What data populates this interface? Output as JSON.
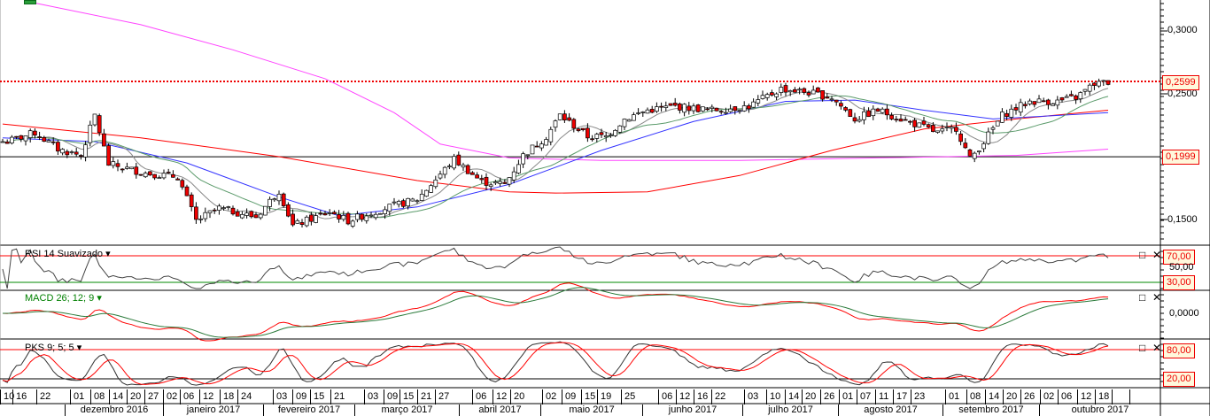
{
  "price_axis": {
    "labels": [
      "0,3000",
      "0,2500",
      "0,1500"
    ],
    "values": [
      0.3,
      0.25,
      0.15
    ]
  },
  "price_tags": [
    {
      "label": "0,2599",
      "value": 0.2599,
      "style": "dotted",
      "color": "#e00000"
    },
    {
      "label": "0,1999",
      "value": 0.1999,
      "style": "solid",
      "color": "#000000"
    }
  ],
  "panels": {
    "rsi": {
      "title": "RSI 14 Suavizado",
      "levels": [
        {
          "label": "70,00",
          "value": 70,
          "color": "#ff0000"
        },
        {
          "label": "30,00",
          "value": 30,
          "color": "#008000"
        }
      ],
      "mid_label": "50,00"
    },
    "macd": {
      "title": "MACD 26; 12; 9",
      "zero_label": "0,0000",
      "title_color": "#008000"
    },
    "pks": {
      "title": "PKS 9; 5; 5",
      "levels": [
        {
          "label": "80,00",
          "value": 80,
          "color": "#ff0000"
        },
        {
          "label": "20,00",
          "value": 20,
          "color": "#000000"
        }
      ]
    }
  },
  "panel_buttons": {
    "maximize": "□",
    "close": "✕"
  },
  "date_axis": {
    "days": [
      "10",
      "16",
      "22",
      "01",
      "08",
      "14",
      "20",
      "27",
      "02",
      "06",
      "12",
      "18",
      "24",
      "03",
      "09",
      "15",
      "21",
      "03",
      "09",
      "15",
      "21",
      "27",
      "06",
      "12",
      "20",
      "02",
      "09",
      "15",
      "19",
      "25",
      "06",
      "12",
      "16",
      "22",
      "03",
      "10",
      "14",
      "20",
      "26",
      "01",
      "07",
      "11",
      "17",
      "23",
      "01",
      "08",
      "14",
      "20",
      "26",
      "02",
      "06",
      "12",
      "18",
      "",
      ""
    ],
    "months": [
      "dezembro 2016",
      "janeiro 2017",
      "fevereiro 2017",
      "março 2017",
      "abril 2017",
      "maio 2017",
      "junho 2017",
      "julho 2017",
      "agosto 2017",
      "setembro 2017",
      "outubro 2017"
    ]
  },
  "chart_data": {
    "type": "candlestick",
    "sessions": 241,
    "close_path": [
      [
        1,
        0.212
      ],
      [
        7,
        0.219
      ],
      [
        12,
        0.206
      ],
      [
        17,
        0.201
      ],
      [
        20,
        0.233
      ],
      [
        23,
        0.194
      ],
      [
        31,
        0.187
      ],
      [
        38,
        0.184
      ],
      [
        42,
        0.149
      ],
      [
        47,
        0.159
      ],
      [
        55,
        0.152
      ],
      [
        60,
        0.173
      ],
      [
        63,
        0.145
      ],
      [
        71,
        0.156
      ],
      [
        75,
        0.149
      ],
      [
        83,
        0.159
      ],
      [
        90,
        0.166
      ],
      [
        98,
        0.198
      ],
      [
        104,
        0.18
      ],
      [
        109,
        0.178
      ],
      [
        113,
        0.201
      ],
      [
        118,
        0.216
      ],
      [
        121,
        0.233
      ],
      [
        127,
        0.216
      ],
      [
        131,
        0.216
      ],
      [
        135,
        0.23
      ],
      [
        140,
        0.237
      ],
      [
        146,
        0.24
      ],
      [
        154,
        0.237
      ],
      [
        162,
        0.24
      ],
      [
        169,
        0.254
      ],
      [
        175,
        0.251
      ],
      [
        180,
        0.247
      ],
      [
        185,
        0.23
      ],
      [
        190,
        0.237
      ],
      [
        198,
        0.226
      ],
      [
        203,
        0.219
      ],
      [
        207,
        0.223
      ],
      [
        210,
        0.198
      ],
      [
        213,
        0.212
      ],
      [
        217,
        0.233
      ],
      [
        223,
        0.244
      ],
      [
        229,
        0.244
      ],
      [
        233,
        0.247
      ],
      [
        237,
        0.258
      ],
      [
        240,
        0.259
      ]
    ],
    "moving_averages": [
      {
        "name": "MM longa (magenta)",
        "color": "#ff44ff",
        "path": [
          [
            6,
            0.323
          ],
          [
            30,
            0.305
          ],
          [
            50,
            0.285
          ],
          [
            70,
            0.262
          ],
          [
            85,
            0.235
          ],
          [
            95,
            0.21
          ],
          [
            110,
            0.199
          ],
          [
            130,
            0.197
          ],
          [
            160,
            0.197
          ],
          [
            190,
            0.199
          ],
          [
            220,
            0.201
          ],
          [
            240,
            0.206
          ]
        ]
      },
      {
        "name": "MM média (vermelha)",
        "color": "#ff0000",
        "path": [
          [
            0,
            0.226
          ],
          [
            30,
            0.215
          ],
          [
            60,
            0.2
          ],
          [
            90,
            0.181
          ],
          [
            110,
            0.172
          ],
          [
            120,
            0.171
          ],
          [
            140,
            0.172
          ],
          [
            160,
            0.185
          ],
          [
            180,
            0.205
          ],
          [
            200,
            0.222
          ],
          [
            220,
            0.23
          ],
          [
            240,
            0.237
          ]
        ]
      },
      {
        "name": "MM curta (azul)",
        "color": "#3333ff",
        "path": [
          [
            0,
            0.215
          ],
          [
            20,
            0.212
          ],
          [
            40,
            0.195
          ],
          [
            60,
            0.168
          ],
          [
            73,
            0.153
          ],
          [
            90,
            0.16
          ],
          [
            110,
            0.178
          ],
          [
            130,
            0.205
          ],
          [
            150,
            0.228
          ],
          [
            170,
            0.244
          ],
          [
            185,
            0.245
          ],
          [
            200,
            0.237
          ],
          [
            215,
            0.23
          ],
          [
            240,
            0.235
          ]
        ]
      }
    ],
    "ylim": [
      0.13,
      0.33
    ]
  }
}
